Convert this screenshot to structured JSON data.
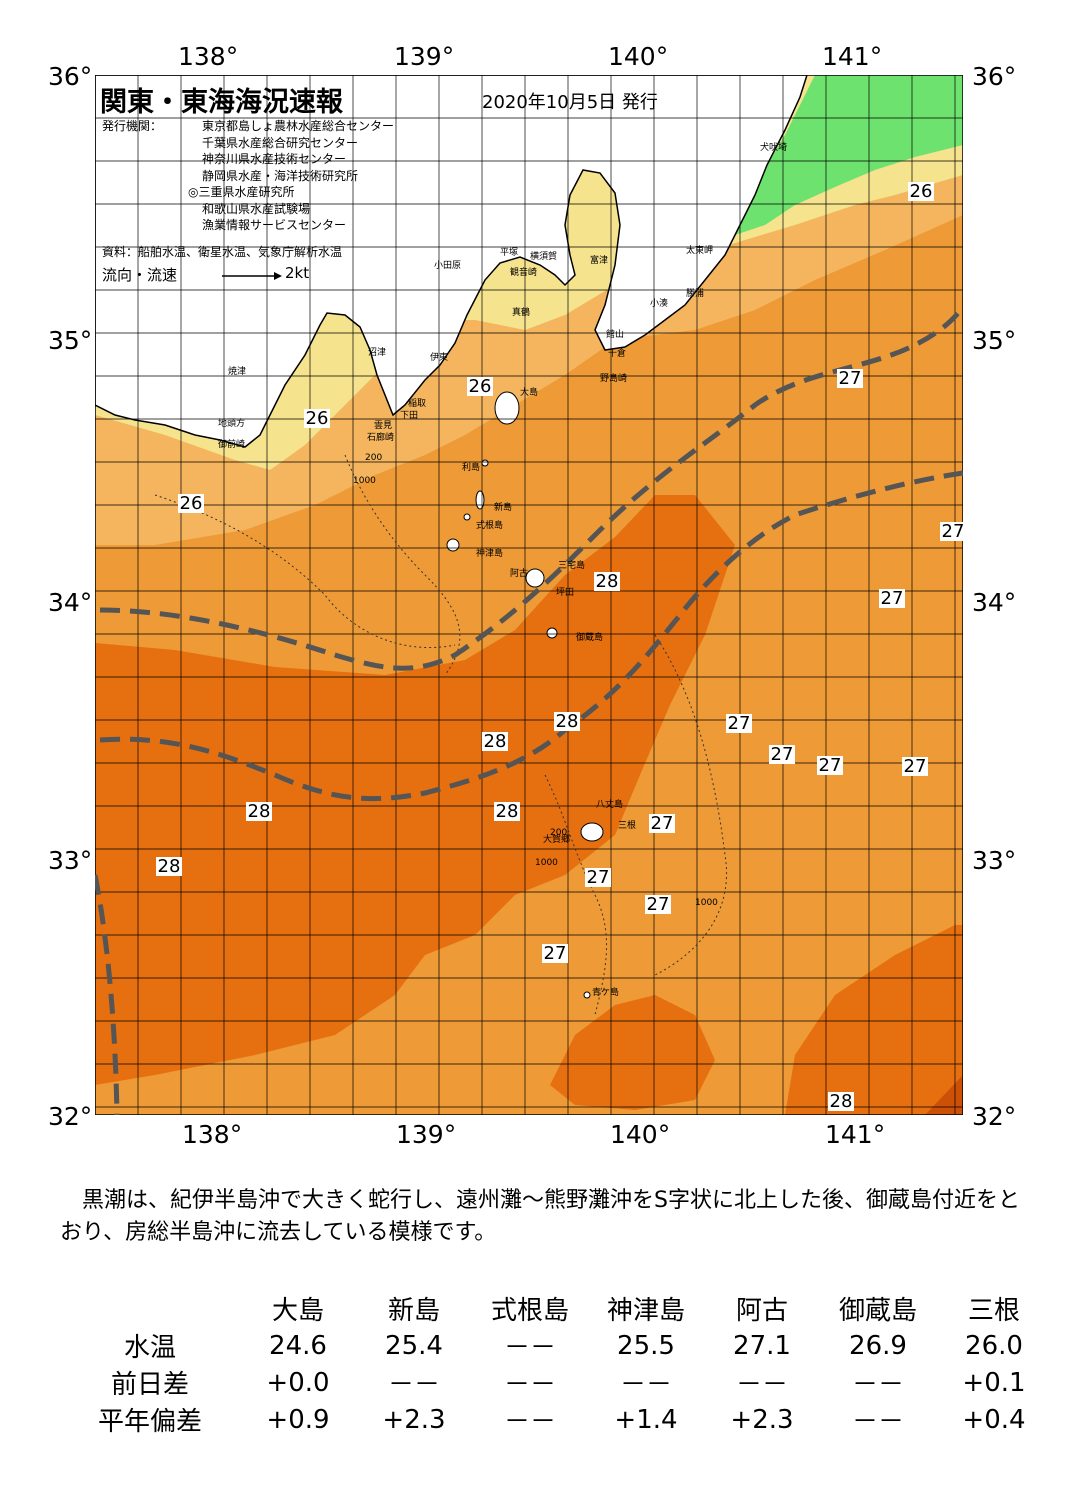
{
  "map": {
    "title": "関東・東海海況速報",
    "issue_date": "2020年10月5日 発行",
    "issuer_label": "発行機関：",
    "issuers": [
      "東京都島しょ農林水産総合センター",
      "千葉県水産総合研究センター",
      "神奈川県水産技術センター",
      "静岡県水産・海洋技術研究所",
      "◎三重県水産研究所",
      "和歌山県水産試験場",
      "漁業情報サービスセンター"
    ],
    "sources": "資料：船舶水温、衛星水温、気象庁解析水温",
    "legend_label": "流向・流速",
    "legend_scale": "2kt",
    "lon_ticks": [
      "138°",
      "139°",
      "140°",
      "141°"
    ],
    "lat_ticks": [
      "36°",
      "35°",
      "34°",
      "33°",
      "32°"
    ],
    "colors": {
      "t24": "#6ee26e",
      "t25": "#f5e38e",
      "t26": "#f4b55e",
      "t27": "#ee9a36",
      "t28": "#e6700f",
      "t29": "#cc5006",
      "land": "#ffffff",
      "kuroshio": "#555555"
    },
    "temperature_labels": [
      "26",
      "26",
      "26",
      "26",
      "27",
      "27",
      "27",
      "27",
      "27",
      "27",
      "27",
      "27",
      "27",
      "27",
      "27",
      "28",
      "28",
      "28",
      "28",
      "28",
      "28",
      "28"
    ],
    "place_names": [
      "犬吠埼",
      "太東岬",
      "勝浦",
      "小湊",
      "館山",
      "千倉",
      "野島崎",
      "富津",
      "観音崎",
      "横須賀",
      "平塚",
      "小田原",
      "真鶴",
      "伊東",
      "石廊崎",
      "下田",
      "稲取",
      "大島",
      "利島",
      "新島",
      "式根島",
      "神津島",
      "三宅島",
      "阿古",
      "坪田",
      "御蔵島",
      "八丈島",
      "三根",
      "大賀郷",
      "青ケ島",
      "焼津",
      "御前崎",
      "地頭方",
      "沼津",
      "雲見"
    ],
    "contour_labels": [
      "1000",
      "200",
      "1000",
      "200",
      "1000"
    ]
  },
  "summary": "黒潮は、紀伊半島沖で大きく蛇行し、遠州灘～熊野灘沖をS字状に北上した後、御蔵島付近をとおり、房総半島沖に流去している模様です。",
  "observations": {
    "columns": [
      "大島",
      "新島",
      "式根島",
      "神津島",
      "阿古",
      "御蔵島",
      "三根"
    ],
    "rows": [
      {
        "label": "水温",
        "values": [
          "24.6",
          "25.4",
          "－－",
          "25.5",
          "27.1",
          "26.9",
          "26.0"
        ]
      },
      {
        "label": "前日差",
        "values": [
          "+0.0",
          "－－",
          "－－",
          "－－",
          "－－",
          "－－",
          "+0.1"
        ]
      },
      {
        "label": "平年偏差",
        "values": [
          "+0.9",
          "+2.3",
          "－－",
          "+1.4",
          "+2.3",
          "－－",
          "+0.4"
        ]
      }
    ]
  }
}
